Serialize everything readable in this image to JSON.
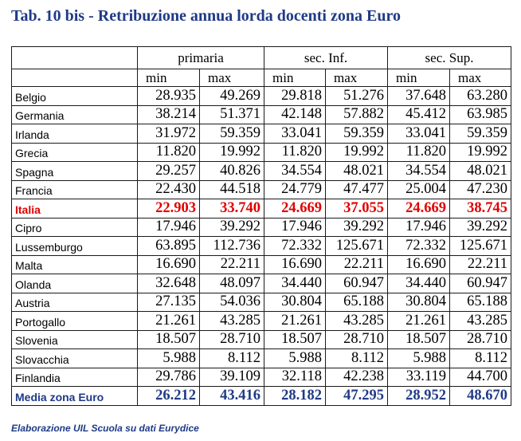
{
  "title": "Tab. 10 bis - Retribuzione annua lorda docenti zona Euro",
  "groups": [
    "primaria",
    "sec. Inf.",
    "sec. Sup."
  ],
  "subheaders": [
    "min",
    "max",
    "min",
    "max",
    "min",
    "max"
  ],
  "rows": [
    {
      "country": "Belgio",
      "values": [
        "28.935",
        "49.269",
        "29.818",
        "51.276",
        "37.648",
        "63.280"
      ]
    },
    {
      "country": "Germania",
      "values": [
        "38.214",
        "51.371",
        "42.148",
        "57.882",
        "45.412",
        "63.985"
      ]
    },
    {
      "country": "Irlanda",
      "values": [
        "31.972",
        "59.359",
        "33.041",
        "59.359",
        "33.041",
        "59.359"
      ]
    },
    {
      "country": "Grecia",
      "values": [
        "11.820",
        "19.992",
        "11.820",
        "19.992",
        "11.820",
        "19.992"
      ]
    },
    {
      "country": "Spagna",
      "values": [
        "29.257",
        "40.826",
        "34.554",
        "48.021",
        "34.554",
        "48.021"
      ]
    },
    {
      "country": "Francia",
      "values": [
        "22.430",
        "44.518",
        "24.779",
        "47.477",
        "25.004",
        "47.230"
      ]
    },
    {
      "country": "Italia",
      "values": [
        "22.903",
        "33.740",
        "24.669",
        "37.055",
        "24.669",
        "38.745"
      ],
      "highlight": "italia"
    },
    {
      "country": "Cipro",
      "values": [
        "17.946",
        "39.292",
        "17.946",
        "39.292",
        "17.946",
        "39.292"
      ]
    },
    {
      "country": "Lussemburgo",
      "values": [
        "63.895",
        "112.736",
        "72.332",
        "125.671",
        "72.332",
        "125.671"
      ]
    },
    {
      "country": "Malta",
      "values": [
        "16.690",
        "22.211",
        "16.690",
        "22.211",
        "16.690",
        "22.211"
      ]
    },
    {
      "country": "Olanda",
      "values": [
        "32.648",
        "48.097",
        "34.440",
        "60.947",
        "34.440",
        "60.947"
      ]
    },
    {
      "country": "Austria",
      "values": [
        "27.135",
        "54.036",
        "30.804",
        "65.188",
        "30.804",
        "65.188"
      ]
    },
    {
      "country": "Portogallo",
      "values": [
        "21.261",
        "43.285",
        "21.261",
        "43.285",
        "21.261",
        "43.285"
      ]
    },
    {
      "country": "Slovenia",
      "values": [
        "18.507",
        "28.710",
        "18.507",
        "28.710",
        "18.507",
        "28.710"
      ]
    },
    {
      "country": "Slovacchia",
      "values": [
        "5.988",
        "8.112",
        "5.988",
        "8.112",
        "5.988",
        "8.112"
      ]
    },
    {
      "country": "Finlandia",
      "values": [
        "29.786",
        "39.109",
        "32.118",
        "42.238",
        "33.119",
        "44.700"
      ]
    },
    {
      "country": "Media zona Euro",
      "values": [
        "26.212",
        "43.416",
        "28.182",
        "47.295",
        "28.952",
        "48.670"
      ],
      "highlight": "media"
    }
  ],
  "footer": "Elaborazione UIL Scuola su dati Eurydice",
  "colors": {
    "title": "#1f3a86",
    "italia": "#e00000",
    "media": "#1f3a86"
  }
}
